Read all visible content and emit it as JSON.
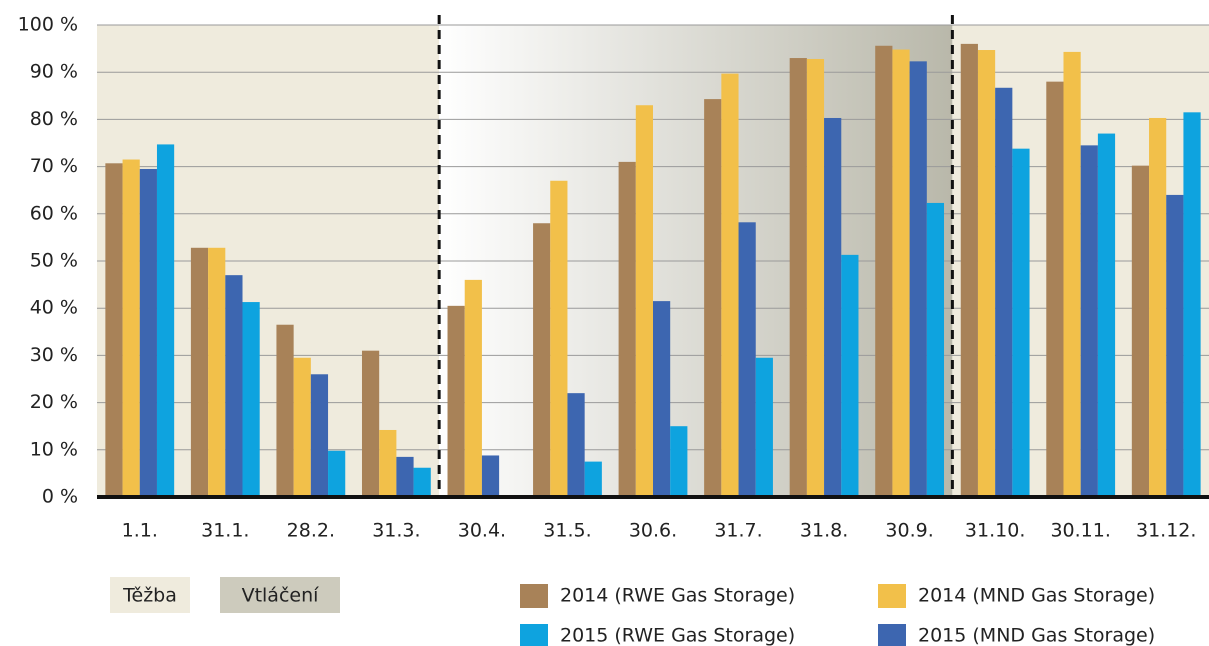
{
  "chart_data": {
    "type": "bar",
    "categories": [
      "1.1.",
      "31.1.",
      "28.2.",
      "31.3.",
      "30.4.",
      "31.5.",
      "30.6.",
      "31.7.",
      "31.8.",
      "30.9.",
      "31.10.",
      "30.11.",
      "31.12."
    ],
    "series": [
      {
        "name": "2014 (RWE Gas Storage)",
        "color": "#a88258",
        "values": [
          70.7,
          52.8,
          36.5,
          31,
          40.5,
          58,
          71,
          84.3,
          93,
          95.6,
          96,
          88,
          70.2
        ]
      },
      {
        "name": "2014 (MND Gas Storage)",
        "color": "#f2c04a",
        "values": [
          71.5,
          52.8,
          29.5,
          14.2,
          46,
          67,
          83,
          89.7,
          92.8,
          94.8,
          94.7,
          94.3,
          80.3
        ]
      },
      {
        "name": "2015 (MND Gas Storage)",
        "color": "#3d66b0",
        "values": [
          69.5,
          47,
          26,
          8.5,
          8.8,
          22,
          41.5,
          58.2,
          80.3,
          92.3,
          86.7,
          74.5,
          64
        ]
      },
      {
        "name": "2015 (RWE Gas Storage)",
        "color": "#0ea3df",
        "values": [
          74.7,
          41.3,
          9.8,
          6.2,
          null,
          7.5,
          15,
          29.5,
          51.3,
          62.3,
          73.8,
          77,
          81.5
        ]
      }
    ],
    "phases": [
      {
        "name": "Těžba",
        "color": "#efebdd"
      },
      {
        "name": "Vtláčení",
        "color": "#cdcbbd"
      }
    ],
    "ylim": [
      0,
      100
    ],
    "yticks": [
      {
        "value": 0,
        "label": "0 %"
      },
      {
        "value": 10,
        "label": "10 %"
      },
      {
        "value": 20,
        "label": "20 %"
      },
      {
        "value": 30,
        "label": "30 %"
      },
      {
        "value": 40,
        "label": "40 %"
      },
      {
        "value": 50,
        "label": "50 %"
      },
      {
        "value": 60,
        "label": "60 %"
      },
      {
        "value": 70,
        "label": "70 %"
      },
      {
        "value": 80,
        "label": "80 %"
      },
      {
        "value": 90,
        "label": "90 %"
      },
      {
        "value": 100,
        "label": "100 %"
      }
    ],
    "grid": true
  }
}
